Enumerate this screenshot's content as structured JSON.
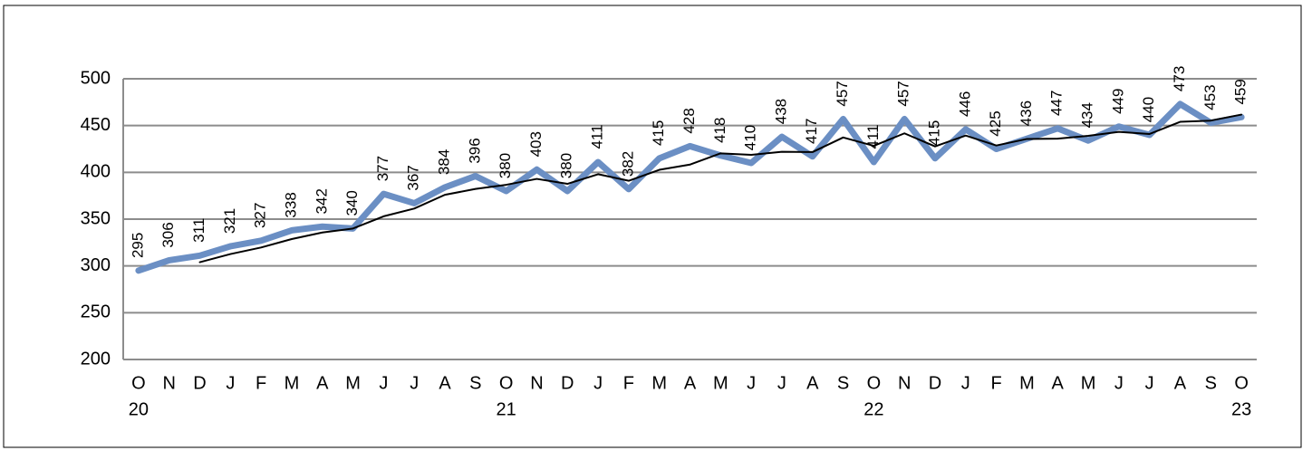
{
  "chart_data": {
    "type": "line",
    "categories": [
      "O",
      "N",
      "D",
      "J",
      "F",
      "M",
      "A",
      "M",
      "J",
      "J",
      "A",
      "S",
      "O",
      "N",
      "D",
      "J",
      "F",
      "M",
      "A",
      "M",
      "J",
      "J",
      "A",
      "S",
      "O",
      "N",
      "D",
      "J",
      "F",
      "M",
      "A",
      "M",
      "J",
      "J",
      "A",
      "S",
      "O"
    ],
    "year_labels": [
      "20",
      null,
      null,
      null,
      null,
      null,
      null,
      null,
      null,
      null,
      null,
      null,
      "21",
      null,
      null,
      null,
      null,
      null,
      null,
      null,
      null,
      null,
      null,
      null,
      "22",
      null,
      null,
      null,
      null,
      null,
      null,
      null,
      null,
      null,
      null,
      null,
      "23"
    ],
    "series": [
      {
        "color": "#6b8fc4",
        "data_labels": true,
        "values": [
          295,
          306,
          311,
          321,
          327,
          338,
          342,
          340,
          377,
          367,
          384,
          396,
          380,
          403,
          380,
          411,
          382,
          415,
          428,
          418,
          410,
          438,
          417,
          457,
          411,
          457,
          415,
          446,
          425,
          436,
          447,
          434,
          449,
          440,
          473,
          453,
          459
        ]
      },
      {
        "color": "#000000",
        "data_labels": false,
        "values": [
          null,
          null,
          304,
          312.7,
          319.7,
          328.7,
          335.7,
          340,
          353,
          361.3,
          376,
          382.3,
          386.7,
          393,
          387.7,
          398,
          391,
          402.7,
          408.3,
          420.3,
          418.7,
          422,
          421.7,
          437.3,
          428.3,
          441.7,
          427.7,
          439.3,
          428.7,
          435.7,
          436,
          439,
          443.3,
          441,
          454,
          455.3,
          461.7
        ]
      }
    ],
    "ylim": [
      200,
      500
    ],
    "yticks": [
      200,
      250,
      300,
      350,
      400,
      450,
      500
    ],
    "grid": true
  }
}
